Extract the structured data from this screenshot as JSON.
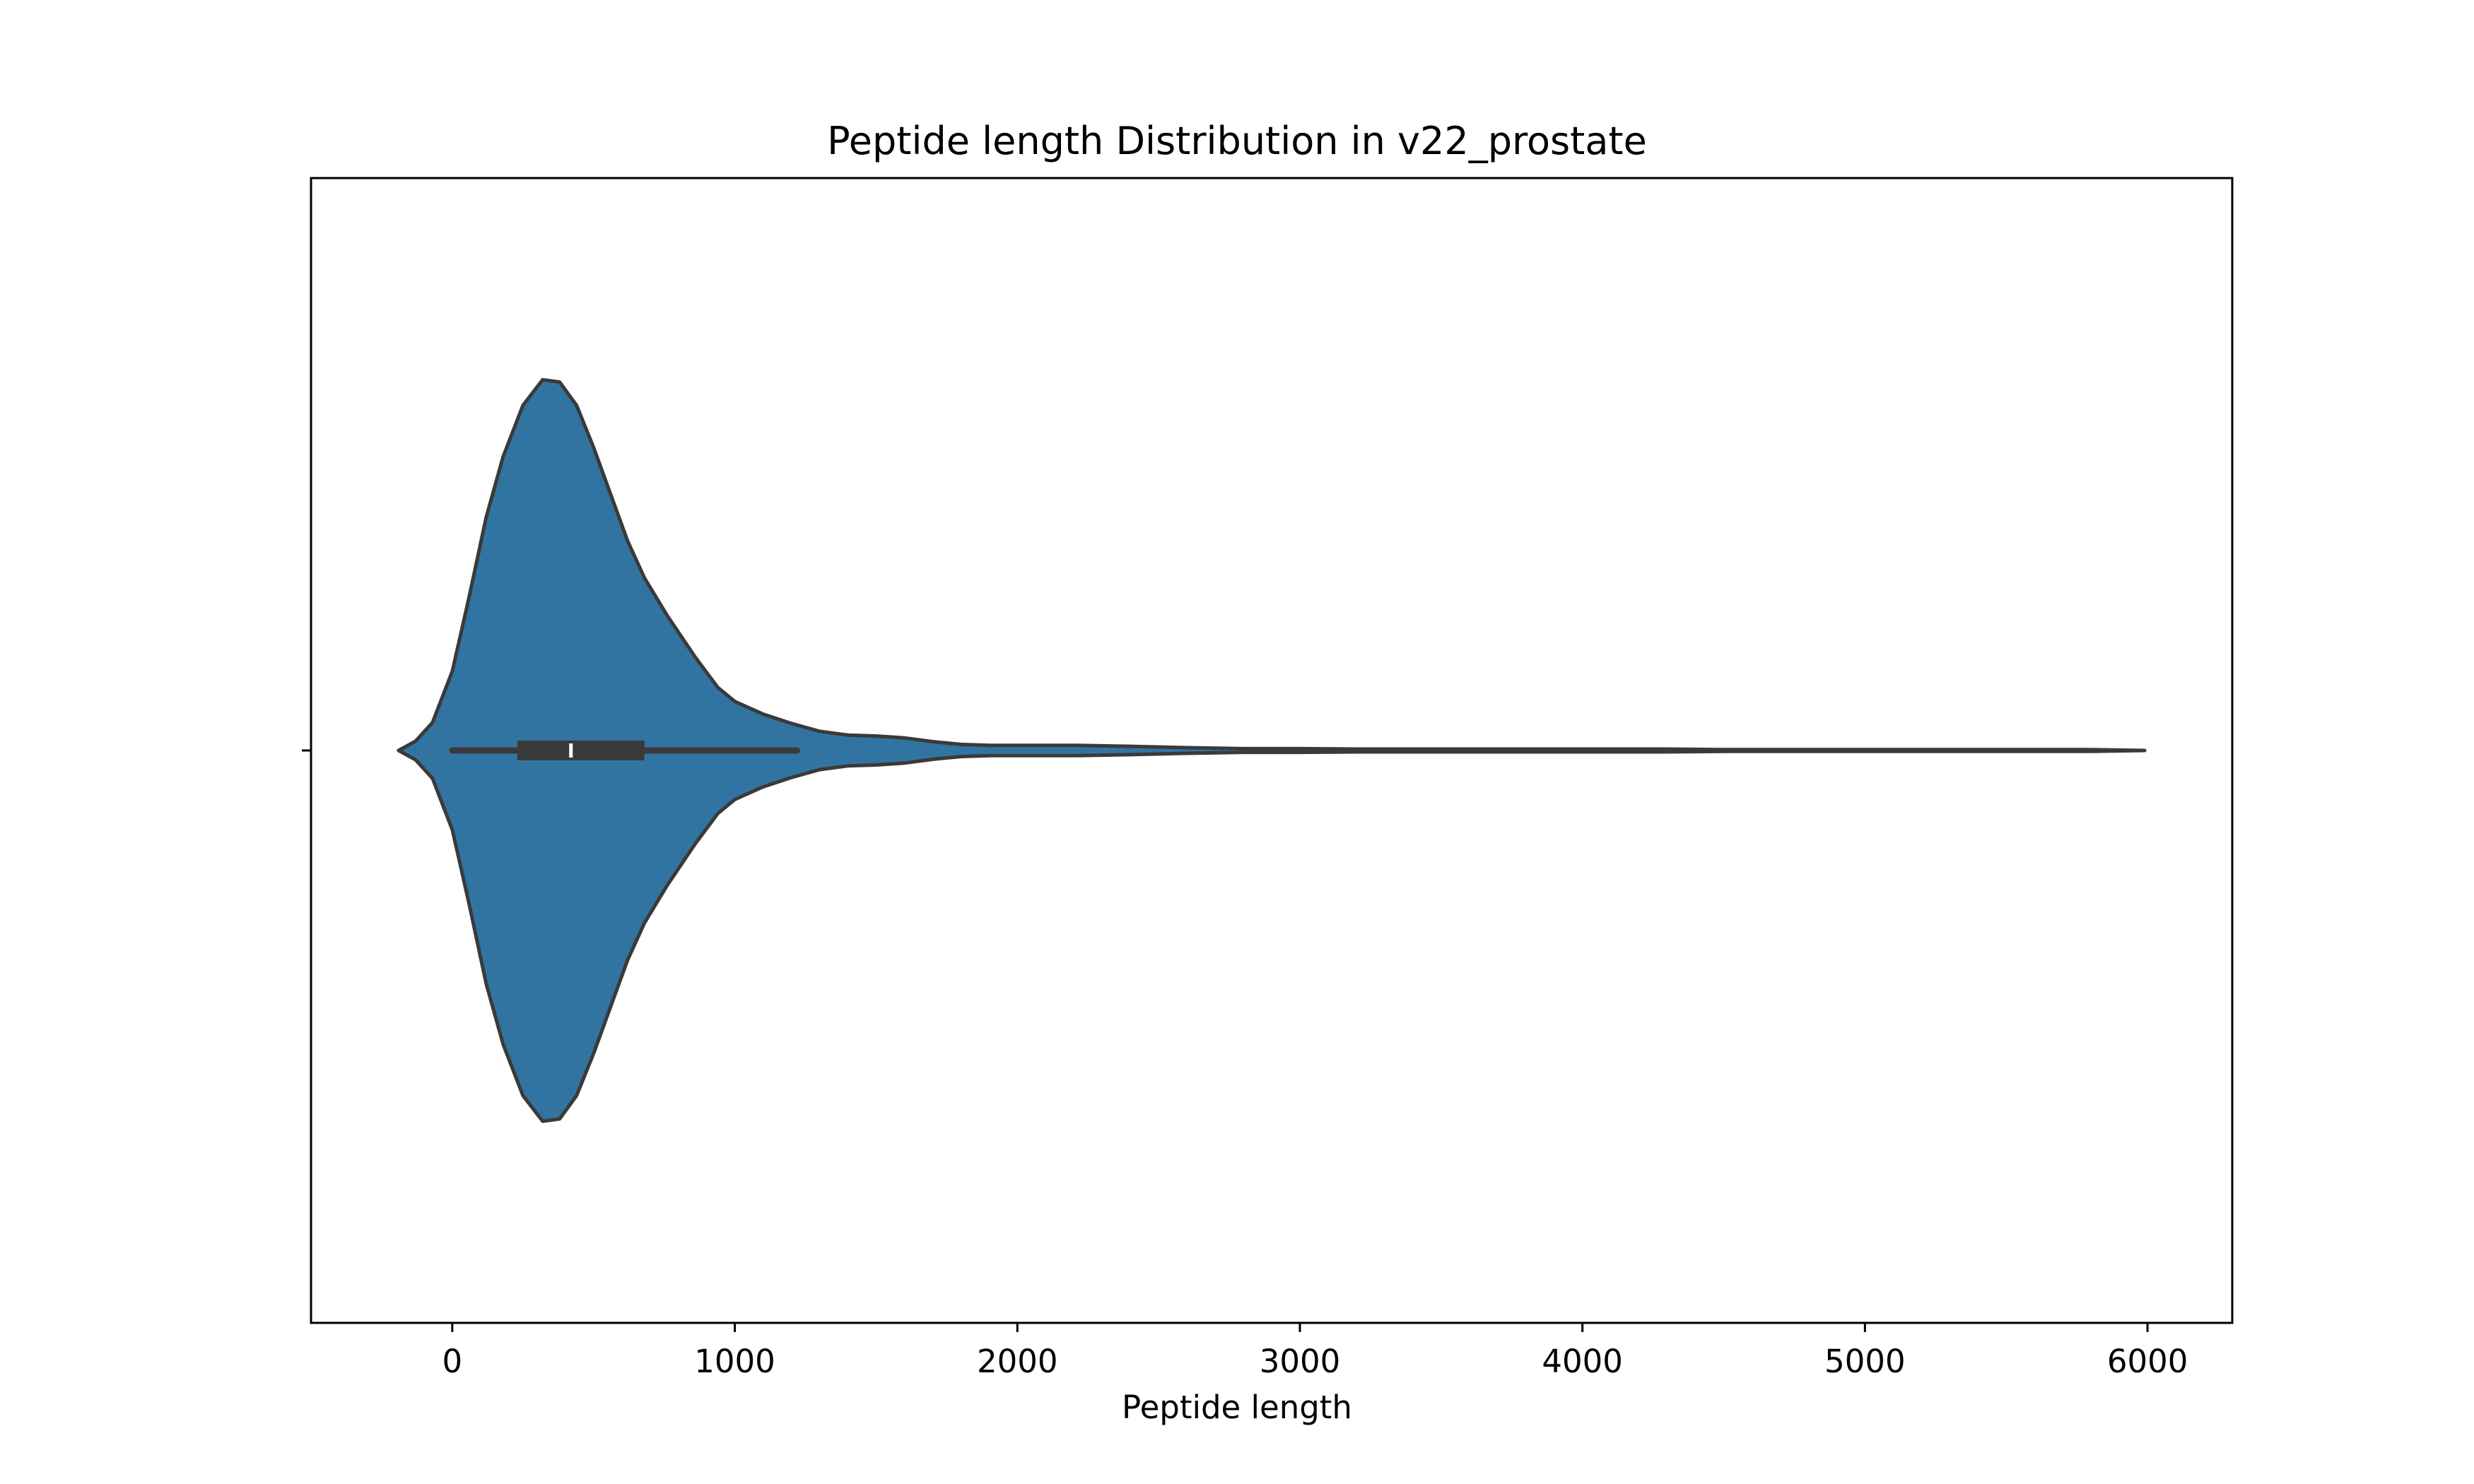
{
  "chart_data": {
    "type": "violin",
    "title": "Peptide length Distribution in v22_prostate",
    "xlabel": "Peptide length",
    "ylabel": "",
    "orientation": "horizontal",
    "xlim": [
      -500,
      6300
    ],
    "x_ticks": [
      0,
      1000,
      2000,
      3000,
      4000,
      5000,
      6000
    ],
    "y_ticks": [
      ""
    ],
    "grid": false,
    "colors": {
      "fill": "#3274a1",
      "outline": "#3a3a3a",
      "box": "#3a3a3a",
      "median": "#ffffff"
    },
    "density_profile": {
      "x": [
        -190,
        -130,
        -70,
        0,
        60,
        120,
        180,
        250,
        320,
        380,
        440,
        500,
        560,
        620,
        680,
        760,
        860,
        940,
        1000,
        1100,
        1200,
        1300,
        1400,
        1500,
        1600,
        1700,
        1800,
        1900,
        2000,
        2100,
        2200,
        2300,
        2400,
        2600,
        2800,
        3000,
        3200,
        3500,
        4000,
        4300,
        4500,
        5000,
        5500,
        5800,
        5990
      ],
      "half_width": [
        0.0,
        0.02,
        0.06,
        0.17,
        0.33,
        0.5,
        0.63,
        0.74,
        0.795,
        0.79,
        0.74,
        0.65,
        0.55,
        0.45,
        0.37,
        0.29,
        0.2,
        0.135,
        0.105,
        0.078,
        0.058,
        0.041,
        0.033,
        0.031,
        0.027,
        0.019,
        0.013,
        0.011,
        0.011,
        0.011,
        0.011,
        0.01,
        0.009,
        0.006,
        0.004,
        0.004,
        0.003,
        0.003,
        0.003,
        0.003,
        0.002,
        0.002,
        0.002,
        0.002,
        0.0
      ]
    },
    "box": {
      "whisker_low": 0,
      "q1": 230,
      "median": 420,
      "q3": 680,
      "whisker_high": 1220
    }
  }
}
